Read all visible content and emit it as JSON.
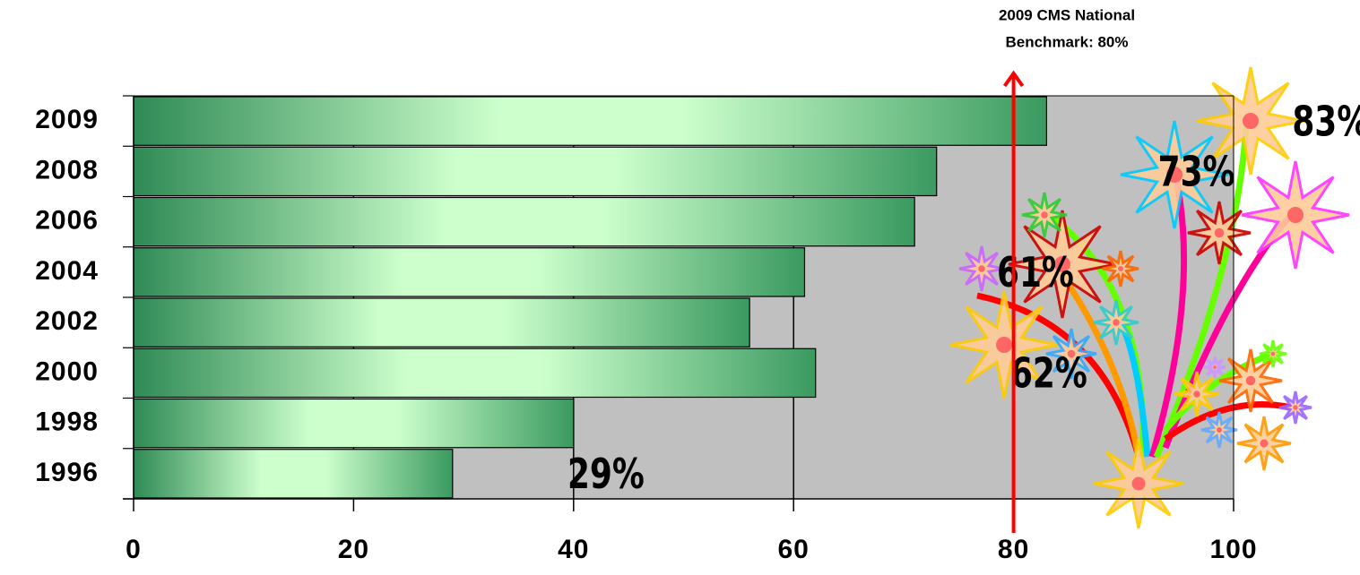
{
  "chart_data": {
    "type": "bar",
    "orientation": "horizontal",
    "categories": [
      "2009",
      "2008",
      "2006",
      "2004",
      "2002",
      "2000",
      "1998",
      "1996"
    ],
    "values": [
      83,
      73,
      71,
      61,
      56,
      62,
      40,
      29
    ],
    "value_labels": [
      "83%",
      "73%",
      null,
      "61%",
      null,
      "62%",
      null,
      "29%"
    ],
    "color": "#3a9a60",
    "xlim": [
      0,
      100
    ],
    "xticks": [
      0,
      20,
      40,
      60,
      80,
      100
    ],
    "grid": true,
    "annotation": {
      "text": [
        "2009 CMS National",
        "Benchmark:  80%"
      ],
      "value": 80,
      "color": "#ff0000"
    }
  }
}
